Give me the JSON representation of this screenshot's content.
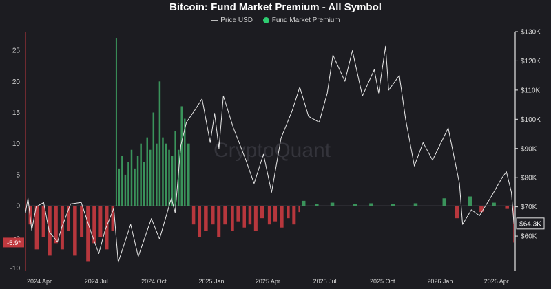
{
  "chart_data": {
    "type": "bar",
    "title": "Bitcoin: Fund Market Premium - All Symbol",
    "legend": {
      "placement": "top-center",
      "entries": [
        "Price USD",
        "Fund Market Premium"
      ]
    },
    "x_ticks": [
      "2024 Apr",
      "2024 Jul",
      "2024 Oct",
      "2025 Jan",
      "2025 Apr",
      "2025 Jul",
      "2025 Oct",
      "2026 Jan",
      "2026 Apr"
    ],
    "x_tick_dates": [
      "2024-04-01",
      "2024-07-01",
      "2024-10-01",
      "2025-01-01",
      "2025-04-01",
      "2025-07-01",
      "2025-10-01",
      "2026-01-01",
      "2026-04-01"
    ],
    "xlim": [
      "2024-03-10",
      "2026-05-01"
    ],
    "left_axis": {
      "ylim": [
        -10.5,
        28
      ],
      "ticks": [
        -10,
        -5,
        0,
        5,
        10,
        15,
        20,
        25
      ]
    },
    "right_axis": {
      "ylim": [
        48000,
        130000
      ],
      "ticks": [
        60000,
        70000,
        80000,
        90000,
        100000,
        110000,
        120000,
        130000
      ],
      "tick_labels": [
        "$60K",
        "$70K",
        "$80K",
        "$90K",
        "$100K",
        "$110K",
        "$120K",
        "$130K"
      ]
    },
    "grid": false,
    "colors": {
      "positive": "#3c9a5f",
      "negative": "#c0393f",
      "price": "#e8e8e8",
      "background": "#1c1c21"
    },
    "series": [
      {
        "name": "Fund Market Premium",
        "axis": "left",
        "points": [
          [
            "2024-03-15",
            -3
          ],
          [
            "2024-03-25",
            -7
          ],
          [
            "2024-04-05",
            -5
          ],
          [
            "2024-04-15",
            -8
          ],
          [
            "2024-04-25",
            -6
          ],
          [
            "2024-05-05",
            -7
          ],
          [
            "2024-05-15",
            -4
          ],
          [
            "2024-05-25",
            -8
          ],
          [
            "2024-06-05",
            -5
          ],
          [
            "2024-06-15",
            -9
          ],
          [
            "2024-06-25",
            -6
          ],
          [
            "2024-07-05",
            -5
          ],
          [
            "2024-07-15",
            -7
          ],
          [
            "2024-07-25",
            -4
          ],
          [
            "2024-08-01",
            27
          ],
          [
            "2024-08-05",
            6
          ],
          [
            "2024-08-10",
            8
          ],
          [
            "2024-08-15",
            5
          ],
          [
            "2024-08-20",
            7
          ],
          [
            "2024-08-25",
            9
          ],
          [
            "2024-08-30",
            6
          ],
          [
            "2024-09-04",
            8
          ],
          [
            "2024-09-09",
            10
          ],
          [
            "2024-09-14",
            7
          ],
          [
            "2024-09-19",
            11
          ],
          [
            "2024-09-24",
            9
          ],
          [
            "2024-09-29",
            15
          ],
          [
            "2024-10-04",
            10
          ],
          [
            "2024-10-09",
            20
          ],
          [
            "2024-10-14",
            11
          ],
          [
            "2024-10-19",
            10
          ],
          [
            "2024-10-24",
            9
          ],
          [
            "2024-10-29",
            8
          ],
          [
            "2024-11-03",
            12
          ],
          [
            "2024-11-08",
            9
          ],
          [
            "2024-11-13",
            16
          ],
          [
            "2024-11-18",
            14
          ],
          [
            "2024-11-23",
            10
          ],
          [
            "2024-12-01",
            -3
          ],
          [
            "2024-12-10",
            -5
          ],
          [
            "2024-12-20",
            -4
          ],
          [
            "2025-01-01",
            -3
          ],
          [
            "2025-01-10",
            -5
          ],
          [
            "2025-01-20",
            -3
          ],
          [
            "2025-02-01",
            -4
          ],
          [
            "2025-02-10",
            -2.5
          ],
          [
            "2025-02-20",
            -3.5
          ],
          [
            "2025-03-01",
            -3
          ],
          [
            "2025-03-10",
            -4
          ],
          [
            "2025-03-20",
            -2
          ],
          [
            "2025-04-01",
            -3
          ],
          [
            "2025-04-10",
            -2.5
          ],
          [
            "2025-04-20",
            -3.5
          ],
          [
            "2025-05-01",
            -2
          ],
          [
            "2025-05-10",
            -3
          ],
          [
            "2025-05-20",
            -1
          ],
          [
            "2025-05-25",
            0.8
          ],
          [
            "2025-06-15",
            0.3
          ],
          [
            "2025-07-10",
            0.5
          ],
          [
            "2025-08-15",
            0.3
          ],
          [
            "2025-09-10",
            0.4
          ],
          [
            "2025-10-15",
            0.3
          ],
          [
            "2025-11-20",
            0.4
          ],
          [
            "2026-01-05",
            1.2
          ],
          [
            "2026-01-25",
            -2
          ],
          [
            "2026-02-15",
            1.5
          ],
          [
            "2026-03-05",
            -1
          ],
          [
            "2026-03-25",
            0.5
          ],
          [
            "2026-04-15",
            -0.5
          ],
          [
            "2026-04-28",
            -5.9
          ]
        ]
      },
      {
        "name": "Price USD",
        "axis": "right",
        "points": [
          [
            "2024-03-10",
            68000
          ],
          [
            "2024-03-14",
            73000
          ],
          [
            "2024-03-20",
            62000
          ],
          [
            "2024-03-27",
            70000
          ],
          [
            "2024-04-08",
            71500
          ],
          [
            "2024-04-17",
            61500
          ],
          [
            "2024-04-30",
            58000
          ],
          [
            "2024-05-07",
            63000
          ],
          [
            "2024-05-21",
            71000
          ],
          [
            "2024-06-07",
            71500
          ],
          [
            "2024-06-24",
            60500
          ],
          [
            "2024-07-05",
            54000
          ],
          [
            "2024-07-15",
            62000
          ],
          [
            "2024-07-29",
            69500
          ],
          [
            "2024-08-05",
            51000
          ],
          [
            "2024-08-25",
            64000
          ],
          [
            "2024-09-06",
            53000
          ],
          [
            "2024-09-27",
            66000
          ],
          [
            "2024-10-10",
            59000
          ],
          [
            "2024-10-29",
            73000
          ],
          [
            "2024-11-04",
            68000
          ],
          [
            "2024-11-13",
            91000
          ],
          [
            "2024-11-22",
            99000
          ],
          [
            "2024-12-05",
            103000
          ],
          [
            "2024-12-17",
            107000
          ],
          [
            "2024-12-30",
            92000
          ],
          [
            "2025-01-06",
            102000
          ],
          [
            "2025-01-13",
            90000
          ],
          [
            "2025-01-20",
            108000
          ],
          [
            "2025-02-05",
            97000
          ],
          [
            "2025-02-25",
            86000
          ],
          [
            "2025-03-10",
            78000
          ],
          [
            "2025-03-25",
            88000
          ],
          [
            "2025-04-07",
            75000
          ],
          [
            "2025-04-22",
            93500
          ],
          [
            "2025-05-10",
            103000
          ],
          [
            "2025-05-22",
            111000
          ],
          [
            "2025-06-05",
            101000
          ],
          [
            "2025-06-22",
            99000
          ],
          [
            "2025-07-05",
            109000
          ],
          [
            "2025-07-14",
            122000
          ],
          [
            "2025-08-02",
            113000
          ],
          [
            "2025-08-14",
            123500
          ],
          [
            "2025-08-30",
            108000
          ],
          [
            "2025-09-18",
            117000
          ],
          [
            "2025-09-25",
            109000
          ],
          [
            "2025-10-06",
            125000
          ],
          [
            "2025-10-11",
            110000
          ],
          [
            "2025-10-28",
            115000
          ],
          [
            "2025-11-07",
            100000
          ],
          [
            "2025-11-21",
            84000
          ],
          [
            "2025-12-05",
            92000
          ],
          [
            "2025-12-20",
            86000
          ],
          [
            "2026-01-05",
            93000
          ],
          [
            "2026-01-14",
            97000
          ],
          [
            "2026-02-01",
            78000
          ],
          [
            "2026-02-06",
            64000
          ],
          [
            "2026-02-20",
            69000
          ],
          [
            "2026-03-05",
            67000
          ],
          [
            "2026-03-25",
            74000
          ],
          [
            "2026-04-10",
            80000
          ],
          [
            "2026-04-17",
            82000
          ],
          [
            "2026-04-25",
            75000
          ],
          [
            "2026-04-29",
            64300
          ]
        ]
      }
    ],
    "annotations": {
      "left_marker": "-5.9*",
      "right_marker": "$64.3K",
      "watermark": "CryptoQuant"
    }
  }
}
